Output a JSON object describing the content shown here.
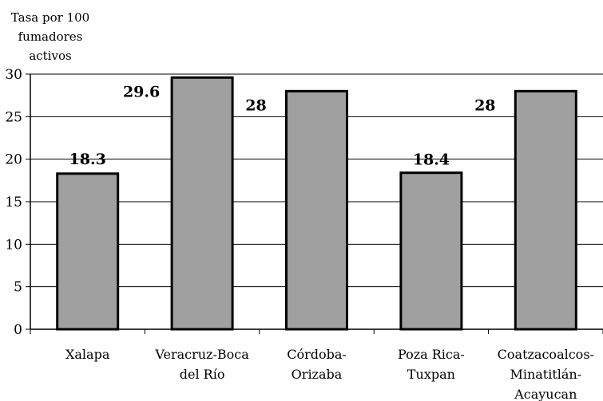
{
  "chart_data": {
    "type": "bar",
    "title": "",
    "ylabel_lines": [
      "Tasa por 100",
      "fumadores",
      "activos"
    ],
    "xlabel": "",
    "ylim": [
      0,
      30
    ],
    "yticks": [
      0,
      5,
      10,
      15,
      20,
      25,
      30
    ],
    "grid": true,
    "categories": [
      [
        "Xalapa"
      ],
      [
        "Veracruz-Boca",
        "del Río"
      ],
      [
        "Córdoba-",
        "Orizaba"
      ],
      [
        "Poza Rica-",
        "Tuxpan"
      ],
      [
        "Coatzacoalcos-",
        "Minatitlán-",
        "Acayucan"
      ]
    ],
    "values": [
      18.3,
      29.6,
      28,
      18.4,
      28
    ],
    "data_labels": [
      "18.3",
      "29.6",
      "28",
      "18.4",
      "28"
    ],
    "bar_color": "#a0a0a0"
  }
}
